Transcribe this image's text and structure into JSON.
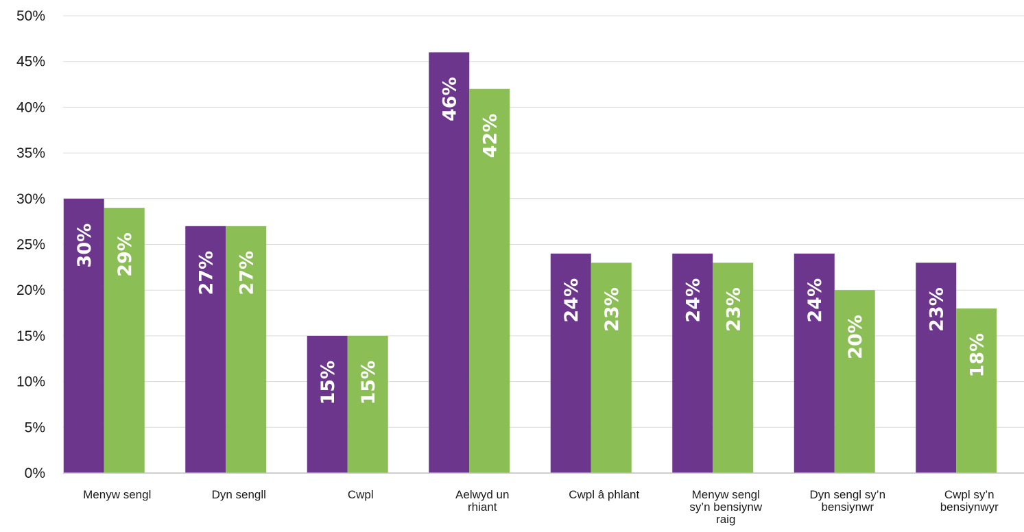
{
  "colors": {
    "series_a": "#6c368c",
    "series_b": "#8bbf56"
  },
  "chart_data": {
    "type": "bar",
    "title": "",
    "xlabel": "",
    "ylabel": "",
    "ylim": [
      0,
      50
    ],
    "y_ticks": [
      "0%",
      "5%",
      "10%",
      "15%",
      "20%",
      "25%",
      "30%",
      "35%",
      "40%",
      "45%",
      "50%"
    ],
    "grid": true,
    "legend": "none",
    "categories": [
      "Menyw sengl",
      "Dyn sengll",
      "Cwpl",
      "Aelwyd un rhiant",
      "Cwpl â phlant",
      "Menyw sengl sy'n bensiynw raig",
      "Dyn sengl sy'n bensiynwr",
      "Cwpl sy'n bensiynwyr"
    ],
    "category_label_lines": [
      [
        "Menyw sengl"
      ],
      [
        "Dyn sengll"
      ],
      [
        "Cwpl"
      ],
      [
        "Aelwyd un",
        "rhiant"
      ],
      [
        "Cwpl â phlant"
      ],
      [
        "Menyw sengl",
        "sy’n bensiynw",
        "raig"
      ],
      [
        "Dyn sengl sy’n",
        "bensiynwr"
      ],
      [
        "Cwpl sy’n",
        "bensiynwyr"
      ]
    ],
    "series": [
      {
        "values": [
          30,
          27,
          15,
          46,
          24,
          24,
          24,
          23
        ],
        "labels": [
          "30%",
          "27%",
          "15%",
          "46%",
          "24%",
          "24%",
          "24%",
          "23%"
        ]
      },
      {
        "values": [
          29,
          27,
          15,
          42,
          23,
          23,
          20,
          18
        ],
        "labels": [
          "29%",
          "27%",
          "15%",
          "42%",
          "23%",
          "23%",
          "20%",
          "18%"
        ]
      }
    ]
  }
}
